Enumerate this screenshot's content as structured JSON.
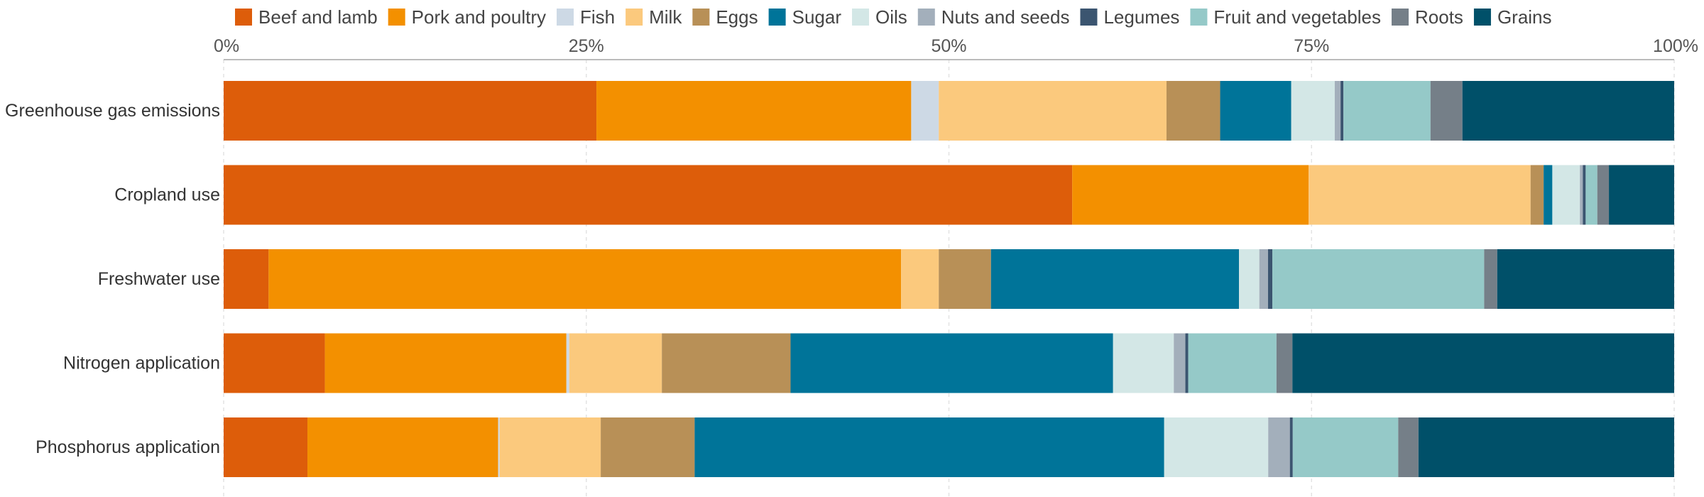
{
  "chart_data": {
    "type": "bar",
    "orientation": "horizontal",
    "stacked": true,
    "title": "",
    "xlabel": "",
    "ylabel": "",
    "xlim": [
      0,
      100
    ],
    "unit": "%",
    "x_ticks": [
      {
        "value": 0,
        "label": "0%"
      },
      {
        "value": 25,
        "label": "25%"
      },
      {
        "value": 50,
        "label": "50%"
      },
      {
        "value": 75,
        "label": "75%"
      },
      {
        "value": 100,
        "label": "100%"
      }
    ],
    "grid": true,
    "legend_position": "top",
    "categories": [
      "Greenhouse gas emissions",
      "Cropland use",
      "Freshwater use",
      "Nitrogen application",
      "Phosphorus application"
    ],
    "series": [
      {
        "name": "Beef and lamb",
        "color": "#dd5d0a",
        "values": [
          25.7,
          58.5,
          3.1,
          7.0,
          5.8
        ]
      },
      {
        "name": "Pork and poultry",
        "color": "#f39000",
        "values": [
          21.7,
          16.3,
          43.6,
          16.7,
          13.2
        ]
      },
      {
        "name": "Fish",
        "color": "#cdd9e5",
        "values": [
          1.9,
          0.0,
          0.0,
          0.2,
          0.1
        ]
      },
      {
        "name": "Milk",
        "color": "#fbc97d",
        "values": [
          15.7,
          15.3,
          2.6,
          6.4,
          7.0
        ]
      },
      {
        "name": "Eggs",
        "color": "#b89057",
        "values": [
          3.7,
          0.9,
          3.6,
          8.9,
          6.5
        ]
      },
      {
        "name": "Sugar",
        "color": "#007499",
        "values": [
          4.9,
          0.6,
          17.1,
          22.3,
          32.5
        ]
      },
      {
        "name": "Oils",
        "color": "#d3e7e6",
        "values": [
          3.0,
          1.9,
          1.4,
          4.2,
          7.2
        ]
      },
      {
        "name": "Nuts and seeds",
        "color": "#a3afbb",
        "values": [
          0.4,
          0.2,
          0.6,
          0.8,
          1.5
        ]
      },
      {
        "name": "Legumes",
        "color": "#3b5570",
        "values": [
          0.2,
          0.2,
          0.3,
          0.2,
          0.2
        ]
      },
      {
        "name": "Fruit and vegetables",
        "color": "#95c9c8",
        "values": [
          6.0,
          0.8,
          14.6,
          6.1,
          7.3
        ]
      },
      {
        "name": "Roots",
        "color": "#757f88",
        "values": [
          2.2,
          0.8,
          0.9,
          1.1,
          1.4
        ]
      },
      {
        "name": "Grains",
        "color": "#005069",
        "values": [
          14.6,
          4.5,
          12.2,
          26.4,
          17.7
        ]
      }
    ]
  }
}
